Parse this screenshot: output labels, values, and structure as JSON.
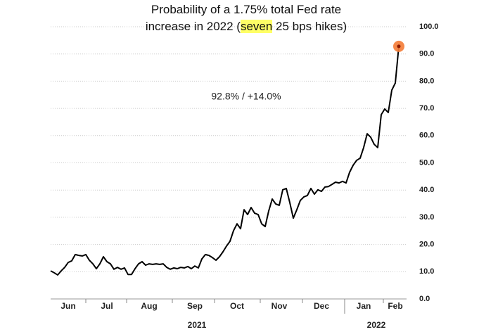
{
  "chart_data": {
    "type": "line",
    "title": [
      "Probability of a 1.75% total Fed rate",
      "increase in 2022 (",
      "seven",
      " 25 bps hikes)"
    ],
    "highlight_color": "#ffff66",
    "annotation": "92.8%  /  +14.0%",
    "categories": [
      null,
      null,
      null,
      null,
      null,
      "Jun",
      null,
      null,
      null,
      null,
      null,
      null,
      null,
      null,
      null,
      null,
      "Jul",
      null,
      null,
      null,
      null,
      null,
      null,
      null,
      null,
      null,
      null,
      null,
      "Aug",
      null,
      null,
      null,
      null,
      null,
      null,
      null,
      null,
      null,
      null,
      null,
      null,
      "Sep",
      null,
      null,
      null,
      null,
      null,
      null,
      null,
      null,
      null,
      null,
      null,
      "Oct",
      null,
      null,
      null,
      null,
      null,
      null,
      null,
      null,
      null,
      null,
      null,
      "Nov",
      null,
      null,
      null,
      null,
      null,
      null,
      null,
      null,
      null,
      null,
      null,
      "Dec",
      null,
      null,
      null,
      null,
      null,
      null,
      null,
      null,
      null,
      null,
      null,
      "Jan",
      null,
      null,
      null,
      null,
      null,
      null,
      null,
      null,
      "Feb",
      null
    ],
    "year_labels": [
      "2021",
      "2022"
    ],
    "values": [
      10.3,
      9.6,
      8.8,
      10.3,
      11.6,
      13.4,
      14,
      16.3,
      16,
      15.8,
      16.3,
      14.2,
      12.9,
      11.1,
      12.9,
      15.5,
      13.7,
      12.9,
      10.9,
      11.6,
      10.9,
      11.4,
      9,
      9,
      11.1,
      12.9,
      13.7,
      12.4,
      12.9,
      12.7,
      12.9,
      12.7,
      12.9,
      11.6,
      10.9,
      11.4,
      11.1,
      11.6,
      11.4,
      11.9,
      11.1,
      12.1,
      11.4,
      14.7,
      16.3,
      16,
      15.2,
      14.2,
      15.5,
      17.3,
      19.4,
      21.2,
      25.1,
      27.6,
      25.8,
      32.8,
      31,
      33.6,
      31.5,
      31,
      27.6,
      26.6,
      32.3,
      36.7,
      34.9,
      34.4,
      40.1,
      40.6,
      35.4,
      29.7,
      32.8,
      36.2,
      37.5,
      38,
      40.6,
      38.5,
      40.1,
      39.5,
      41.1,
      41.3,
      42.1,
      42.9,
      42.6,
      43.2,
      42.6,
      46.5,
      49.1,
      50.9,
      51.7,
      55.6,
      60.7,
      59.4,
      56.8,
      55.6,
      67.7,
      69.8,
      68.5,
      76.7,
      79.3,
      92.8
    ],
    "color": "#000000",
    "marker_color": "#f47b35",
    "ylim": [
      0,
      100
    ],
    "yticks": [
      {
        "value": 0,
        "label": "0.0"
      },
      {
        "value": 10,
        "label": "10.0"
      },
      {
        "value": 20,
        "label": "20.0"
      },
      {
        "value": 30,
        "label": "30.0"
      },
      {
        "value": 40,
        "label": "40.0"
      },
      {
        "value": 50,
        "label": "50.0"
      },
      {
        "value": 60,
        "label": "60.0"
      },
      {
        "value": 70,
        "label": "70.0"
      },
      {
        "value": 80,
        "label": "80.0"
      },
      {
        "value": 90,
        "label": "90.0"
      },
      {
        "value": 100,
        "label": "100.0"
      }
    ],
    "grid": true
  }
}
